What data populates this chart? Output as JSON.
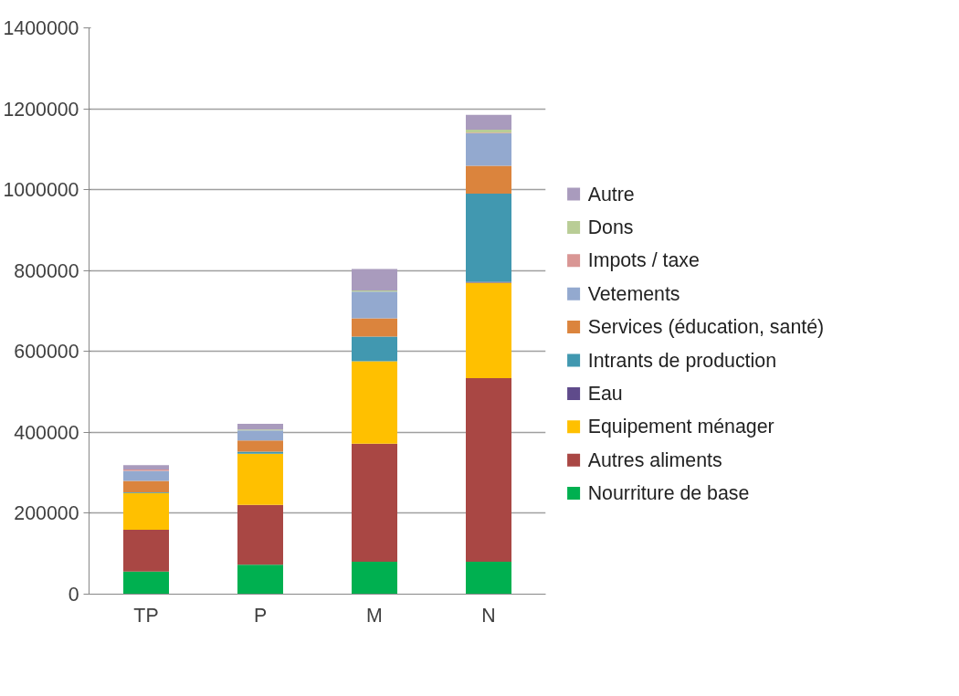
{
  "chart_data": {
    "type": "bar",
    "stacked": true,
    "categories": [
      "TP",
      "P",
      "M",
      "N"
    ],
    "series": [
      {
        "name": "Nourriture de base",
        "color": "#00b050",
        "values": [
          56000,
          73000,
          80000,
          80000
        ]
      },
      {
        "name": "Autres aliments",
        "color": "#a94744",
        "values": [
          103000,
          148000,
          292000,
          454000
        ]
      },
      {
        "name": "Equipement ménager",
        "color": "#ffc000",
        "values": [
          91000,
          126000,
          204000,
          236000
        ]
      },
      {
        "name": "Eau",
        "color": "#5f4b8b",
        "values": [
          0,
          0,
          0,
          2000
        ]
      },
      {
        "name": "Intrants de production",
        "color": "#4198b0",
        "values": [
          2000,
          5000,
          61000,
          218000
        ]
      },
      {
        "name": "Services (éducation, santé)",
        "color": "#db843d",
        "values": [
          28000,
          28000,
          45000,
          69000
        ]
      },
      {
        "name": "Vetements",
        "color": "#93a9cf",
        "values": [
          25000,
          25000,
          66000,
          80000
        ]
      },
      {
        "name": "Impots / taxe",
        "color": "#d99694",
        "values": [
          3000,
          0,
          null,
          2000
        ]
      },
      {
        "name": "Dons",
        "color": "#b9cd96",
        "values": [
          0,
          2000,
          3000,
          7000
        ]
      },
      {
        "name": "Autre",
        "color": "#a99bbd",
        "values": [
          11000,
          14000,
          53000,
          37000
        ]
      }
    ],
    "ylim": [
      0,
      1400000
    ],
    "yticks": [
      0,
      200000,
      400000,
      600000,
      800000,
      1000000,
      1200000,
      1400000
    ],
    "grid": "y",
    "legend": "right"
  }
}
